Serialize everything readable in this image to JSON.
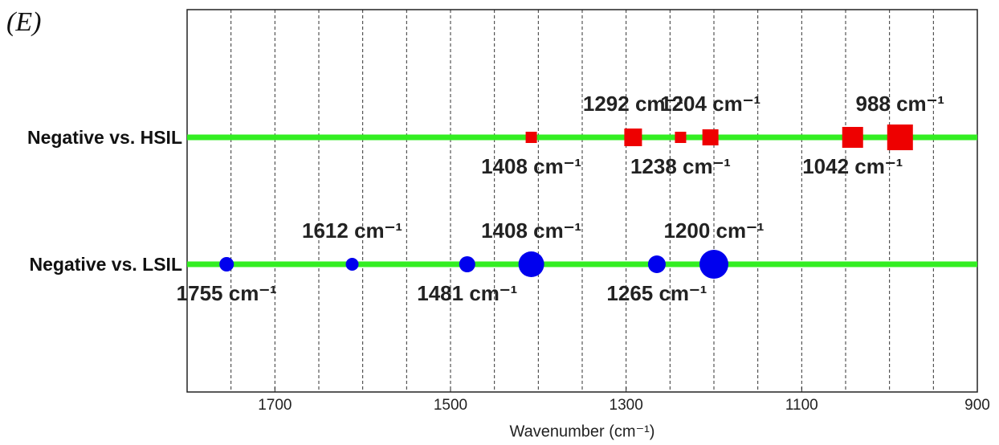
{
  "chart_data": {
    "type": "dot-strip",
    "panel_label": "(E)",
    "x_label": "Wavenumber (cm⁻¹)",
    "xlim": [
      1800,
      900
    ],
    "xticks": [
      1700,
      1500,
      1300,
      1100,
      900
    ],
    "xgrid": [
      1750,
      1700,
      1650,
      1600,
      1550,
      1500,
      1450,
      1400,
      1350,
      1300,
      1250,
      1200,
      1150,
      1100,
      1050,
      1000,
      950
    ],
    "grid": true,
    "line_color": "#33ee22",
    "series": [
      {
        "name": "Negative vs. HSIL",
        "color": "#ee0000",
        "marker": "square",
        "values": [
          1408,
          1292,
          1238,
          1204,
          1042,
          988
        ],
        "value_labels": [
          "1408 cm⁻¹",
          "1292 cm⁻¹",
          "1238 cm⁻¹",
          "1204 cm⁻¹",
          "1042 cm⁻¹",
          "988 cm⁻¹"
        ],
        "sizes": [
          14,
          22,
          14,
          20,
          26,
          32
        ]
      },
      {
        "name": "Negative vs. LSIL",
        "color": "#0000ee",
        "marker": "circle",
        "values": [
          1755,
          1612,
          1481,
          1408,
          1265,
          1200
        ],
        "value_labels": [
          "1755 cm⁻¹",
          "1612 cm⁻¹",
          "1481 cm⁻¹",
          "1408 cm⁻¹",
          "1265 cm⁻¹",
          "1200 cm⁻¹"
        ],
        "sizes": [
          18,
          16,
          20,
          32,
          22,
          36
        ]
      }
    ]
  }
}
